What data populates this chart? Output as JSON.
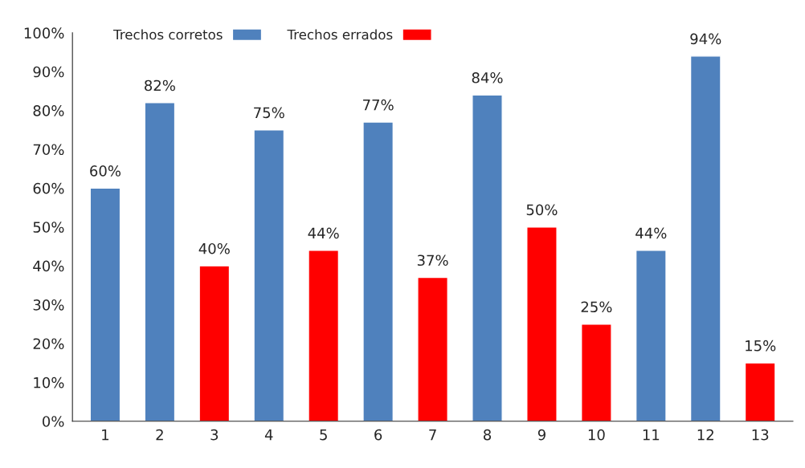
{
  "chart_data": {
    "type": "bar",
    "legend": "top left",
    "grid": false,
    "categories": [
      "1",
      "2",
      "3",
      "4",
      "5",
      "6",
      "7",
      "8",
      "9",
      "10",
      "11",
      "12",
      "13"
    ],
    "series": [
      {
        "name": "Trechos corretos",
        "color": "#4f81bd",
        "values": [
          60,
          82,
          null,
          75,
          null,
          77,
          null,
          84,
          null,
          null,
          44,
          94,
          null
        ],
        "value_labels": [
          "60%",
          "82%",
          null,
          "75%",
          null,
          "77%",
          null,
          "84%",
          null,
          null,
          "44%",
          "94%",
          null
        ]
      },
      {
        "name": "Trechos errados",
        "color": "#ff0000",
        "values": [
          null,
          null,
          40,
          null,
          44,
          null,
          37,
          null,
          50,
          25,
          null,
          null,
          15
        ],
        "value_labels": [
          null,
          null,
          "40%",
          null,
          "44%",
          null,
          "37%",
          null,
          "50%",
          "25%",
          null,
          null,
          "15%"
        ]
      }
    ],
    "ylim": [
      0,
      100
    ],
    "yticks": [
      {
        "value": 0,
        "label": "0%"
      },
      {
        "value": 10,
        "label": "10%"
      },
      {
        "value": 20,
        "label": "20%"
      },
      {
        "value": 30,
        "label": "30%"
      },
      {
        "value": 40,
        "label": "40%"
      },
      {
        "value": 50,
        "label": "50%"
      },
      {
        "value": 60,
        "label": "60%"
      },
      {
        "value": 70,
        "label": "70%"
      },
      {
        "value": 80,
        "label": "80%"
      },
      {
        "value": 90,
        "label": "90%"
      },
      {
        "value": 100,
        "label": "100%"
      }
    ]
  }
}
